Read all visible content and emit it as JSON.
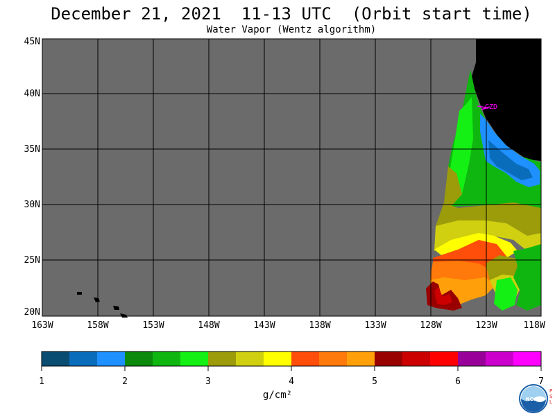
{
  "title": "December 21, 2021  11-13 UTC  (Orbit start time)",
  "subtitle": "Water Vapor (Wentz algorithm)",
  "map": {
    "lat_labels": [
      "45N",
      "40N",
      "35N",
      "30N",
      "25N",
      "20N"
    ],
    "lon_labels": [
      "163W",
      "158W",
      "153W",
      "148W",
      "143W",
      "138W",
      "133W",
      "128W",
      "123W",
      "118W"
    ],
    "station_label": "CZD",
    "colors": {
      "no_data": "#6b6b6b",
      "land": "#000000",
      "grid": "#000000",
      "station": "#ff00ff"
    }
  },
  "colorbar": {
    "tick_labels": [
      "1",
      "2",
      "3",
      "4",
      "5",
      "6",
      "7"
    ],
    "colors": [
      "#0a4d73",
      "#0a6dbc",
      "#1e90ff",
      "#0b8a0b",
      "#10b610",
      "#14f014",
      "#9c9c0a",
      "#d0d010",
      "#ffff00",
      "#ff4d0a",
      "#ff7a0a",
      "#ffa00a",
      "#990000",
      "#cc0000",
      "#ff0000",
      "#990099",
      "#cc00cc",
      "#ff00ff"
    ],
    "units": "g/cm²"
  },
  "logo": {
    "text": "NOAA",
    "side_text": "PSL"
  }
}
